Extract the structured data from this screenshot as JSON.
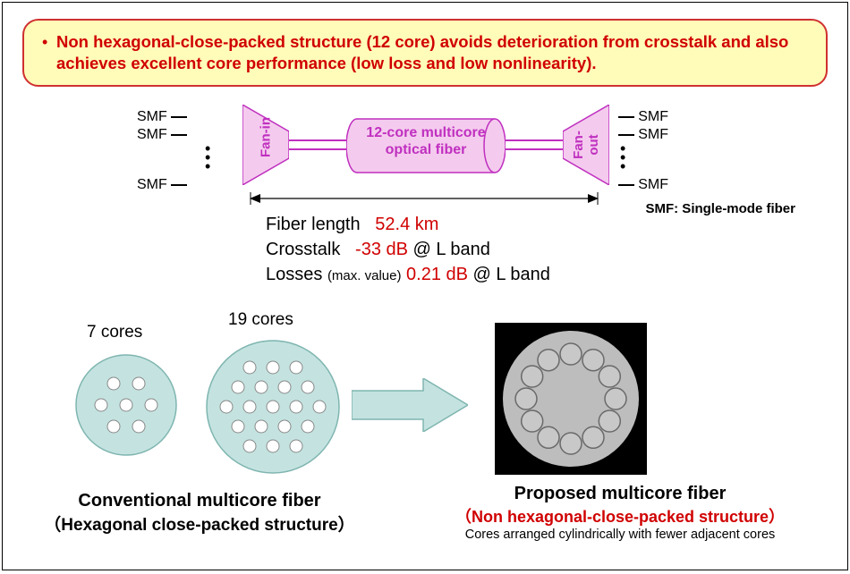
{
  "callout": {
    "text": "Non hexagonal-close-packed structure (12 core) avoids deterioration from crosstalk and also achieves excellent core performance (low loss and low nonlinearity).",
    "bg": "#fffbb8",
    "border": "#d03030",
    "text_color": "#d00000",
    "fontsize": 18.5
  },
  "diagram": {
    "smf_label": "SMF",
    "fan_in_label": "Fan-in",
    "fan_out_label": "Fan-out",
    "fiber_label_l1": "12-core multicore",
    "fiber_label_l2": "optical fiber",
    "trapezoid_fill": "#f4cbee",
    "trapezoid_stroke": "#c030c0",
    "cylinder_fill": "#f4cbee",
    "cylinder_stroke": "#c030c0",
    "legend": "SMF: Single-mode fiber"
  },
  "specs": {
    "rows": [
      {
        "label": "Fiber length",
        "value": "52.4 km",
        "suffix": ""
      },
      {
        "label": "Crosstalk",
        "value": "-33 dB",
        "suffix": " @  L band"
      },
      {
        "label": "Losses",
        "small": "(max. value)",
        "value": "0.21 dB",
        "suffix": " @  L band"
      }
    ],
    "hl_color": "#d00000"
  },
  "bottom": {
    "label_7": "7 cores",
    "label_19": "19 cores",
    "circle_fill": "#c4e3e0",
    "circle_stroke": "#7fb5b0",
    "core_fill": "#ffffff",
    "core_stroke": "#888888",
    "circle7": {
      "r": 56,
      "core_r": 7,
      "positions": [
        [
          0,
          0
        ],
        [
          28,
          0
        ],
        [
          -28,
          0
        ],
        [
          14,
          24
        ],
        [
          -14,
          24
        ],
        [
          14,
          -24
        ],
        [
          -14,
          -24
        ]
      ]
    },
    "circle19": {
      "r": 74,
      "core_r": 7,
      "positions": [
        [
          0,
          0
        ],
        [
          26,
          0
        ],
        [
          -26,
          0
        ],
        [
          13,
          22
        ],
        [
          -13,
          22
        ],
        [
          13,
          -22
        ],
        [
          -13,
          -22
        ],
        [
          52,
          0
        ],
        [
          -52,
          0
        ],
        [
          26,
          44
        ],
        [
          -26,
          44
        ],
        [
          26,
          -44
        ],
        [
          -26,
          -44
        ],
        [
          39,
          22
        ],
        [
          -39,
          22
        ],
        [
          39,
          -22
        ],
        [
          -39,
          -22
        ],
        [
          0,
          44
        ],
        [
          0,
          -44
        ]
      ]
    },
    "arrow_fill": "#c4e3e0",
    "arrow_stroke": "#7fb5b0",
    "photo": {
      "bg": "#000000",
      "disc_fill": "#bdbdbd",
      "core_fill": "#c8c8c8",
      "core_stroke": "#6a6a6a",
      "ring_count": 12,
      "ring_r": 50,
      "core_r": 12
    },
    "caption_left_l1": "Conventional multicore fiber",
    "caption_left_l2": "（Hexagonal close-packed structure）",
    "caption_right_l1": "Proposed multicore fiber",
    "caption_right_l2": "（Non hexagonal-close-packed structure）",
    "caption_right_l3": "Cores arranged cylindrically with fewer adjacent cores"
  }
}
